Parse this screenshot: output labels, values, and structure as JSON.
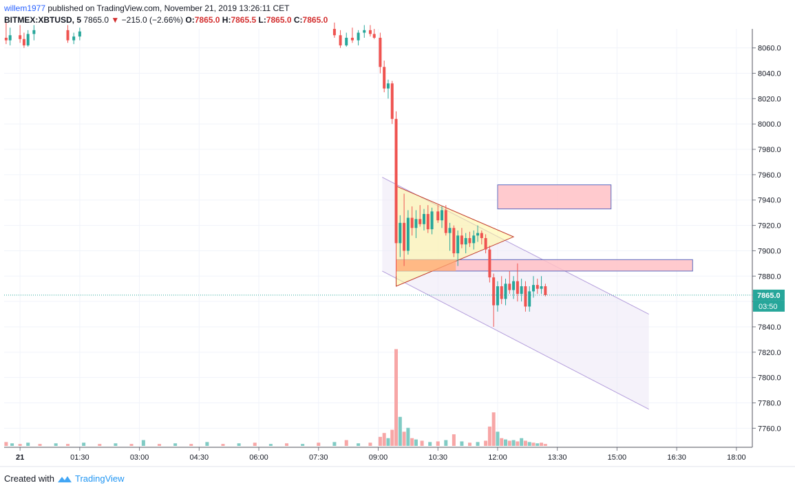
{
  "header": {
    "user": "willem1977",
    "published": "published on TradingView.com, November 21, 2019 13:26:11 CET",
    "symbol": "BITMEX:XBTUSD, 5",
    "price": "7865.0",
    "change": "−215.0 (−2.66%)",
    "open_label": "O:",
    "open": "7865.0",
    "high_label": "H:",
    "high": "7865.5",
    "low_label": "L:",
    "low": "7865.0",
    "close_label": "C:",
    "close": "7865.0"
  },
  "footer": {
    "created_with": "Created with",
    "brand": "TradingView"
  },
  "price_badge": {
    "price": "7865.0",
    "countdown": "03:50"
  },
  "colors": {
    "up": "#26a69a",
    "down": "#ef5350",
    "vol_up": "#80cbc4",
    "vol_down": "#f7a6a6",
    "grid": "#f0f3fa"
  },
  "chart_data": {
    "type": "candlestick",
    "ylim": [
      7745,
      8075
    ],
    "xlim": [
      -0.4,
      18.4
    ],
    "y_ticks": [
      "8060.0",
      "8040.0",
      "8020.0",
      "8000.0",
      "7980.0",
      "7960.0",
      "7940.0",
      "7920.0",
      "7900.0",
      "7880.0",
      "7860.0",
      "7840.0",
      "7820.0",
      "7800.0",
      "7780.0",
      "7760.0"
    ],
    "x_ticks": [
      {
        "label": "21",
        "t": 0.0
      },
      {
        "label": "01:30",
        "t": 1.5
      },
      {
        "label": "03:00",
        "t": 3.0
      },
      {
        "label": "04:30",
        "t": 4.5
      },
      {
        "label": "06:00",
        "t": 6.0
      },
      {
        "label": "07:30",
        "t": 7.5
      },
      {
        "label": "09:00",
        "t": 9.0
      },
      {
        "label": "10:30",
        "t": 10.5
      },
      {
        "label": "12:00",
        "t": 12.0
      },
      {
        "label": "13:30",
        "t": 13.5
      },
      {
        "label": "15:00",
        "t": 15.0
      },
      {
        "label": "16:30",
        "t": 16.5
      },
      {
        "label": "18:00",
        "t": 18.0
      }
    ],
    "current_price": 7865.0,
    "candles": [
      {
        "t": -0.35,
        "o": 8068,
        "h": 8080,
        "l": 8063,
        "c": 8066
      },
      {
        "t": -0.25,
        "o": 8066,
        "h": 8076,
        "l": 8062,
        "c": 8070
      },
      {
        "t": 0.0,
        "o": 8070,
        "h": 8078,
        "l": 8064,
        "c": 8067
      },
      {
        "t": 0.1,
        "o": 8067,
        "h": 8072,
        "l": 8060,
        "c": 8062
      },
      {
        "t": 0.2,
        "o": 8062,
        "h": 8074,
        "l": 8061,
        "c": 8071
      },
      {
        "t": 0.35,
        "o": 8071,
        "h": 8078,
        "l": 8066,
        "c": 8074
      },
      {
        "t": 1.2,
        "o": 8074,
        "h": 8078,
        "l": 8064,
        "c": 8066
      },
      {
        "t": 1.35,
        "o": 8066,
        "h": 8072,
        "l": 8063,
        "c": 8069
      },
      {
        "t": 1.5,
        "o": 8069,
        "h": 8076,
        "l": 8066,
        "c": 8073
      },
      {
        "t": 7.9,
        "o": 8075,
        "h": 8080,
        "l": 8068,
        "c": 8070
      },
      {
        "t": 8.05,
        "o": 8070,
        "h": 8074,
        "l": 8060,
        "c": 8062
      },
      {
        "t": 8.2,
        "o": 8062,
        "h": 8072,
        "l": 8061,
        "c": 8068
      },
      {
        "t": 8.35,
        "o": 8068,
        "h": 8076,
        "l": 8064,
        "c": 8066
      },
      {
        "t": 8.5,
        "o": 8066,
        "h": 8074,
        "l": 8062,
        "c": 8072
      },
      {
        "t": 8.65,
        "o": 8072,
        "h": 8078,
        "l": 8068,
        "c": 8074
      },
      {
        "t": 8.8,
        "o": 8074,
        "h": 8078,
        "l": 8069,
        "c": 8071
      },
      {
        "t": 8.9,
        "o": 8071,
        "h": 8075,
        "l": 8067,
        "c": 8068
      },
      {
        "t": 9.05,
        "o": 8068,
        "h": 8072,
        "l": 8040,
        "c": 8045
      },
      {
        "t": 9.15,
        "o": 8045,
        "h": 8050,
        "l": 8025,
        "c": 8028
      },
      {
        "t": 9.25,
        "o": 8028,
        "h": 8035,
        "l": 8020,
        "c": 8032
      },
      {
        "t": 9.35,
        "o": 8032,
        "h": 8034,
        "l": 8000,
        "c": 8004
      },
      {
        "t": 9.45,
        "o": 8004,
        "h": 8010,
        "l": 7880,
        "c": 7906
      },
      {
        "t": 9.55,
        "o": 7906,
        "h": 7928,
        "l": 7895,
        "c": 7922
      },
      {
        "t": 9.65,
        "o": 7922,
        "h": 7945,
        "l": 7888,
        "c": 7900
      },
      {
        "t": 9.75,
        "o": 7900,
        "h": 7932,
        "l": 7897,
        "c": 7926
      },
      {
        "t": 9.85,
        "o": 7926,
        "h": 7935,
        "l": 7912,
        "c": 7918
      },
      {
        "t": 9.95,
        "o": 7918,
        "h": 7932,
        "l": 7910,
        "c": 7925
      },
      {
        "t": 10.05,
        "o": 7925,
        "h": 7936,
        "l": 7919,
        "c": 7921
      },
      {
        "t": 10.15,
        "o": 7921,
        "h": 7933,
        "l": 7916,
        "c": 7929
      },
      {
        "t": 10.25,
        "o": 7929,
        "h": 7936,
        "l": 7914,
        "c": 7917
      },
      {
        "t": 10.35,
        "o": 7917,
        "h": 7934,
        "l": 7913,
        "c": 7931
      },
      {
        "t": 10.5,
        "o": 7931,
        "h": 7936,
        "l": 7922,
        "c": 7924
      },
      {
        "t": 10.6,
        "o": 7924,
        "h": 7935,
        "l": 7918,
        "c": 7932
      },
      {
        "t": 10.7,
        "o": 7932,
        "h": 7936,
        "l": 7912,
        "c": 7914
      },
      {
        "t": 10.8,
        "o": 7914,
        "h": 7922,
        "l": 7900,
        "c": 7918
      },
      {
        "t": 10.9,
        "o": 7918,
        "h": 7920,
        "l": 7895,
        "c": 7898
      },
      {
        "t": 11.0,
        "o": 7898,
        "h": 7916,
        "l": 7888,
        "c": 7912
      },
      {
        "t": 11.1,
        "o": 7912,
        "h": 7918,
        "l": 7902,
        "c": 7905
      },
      {
        "t": 11.2,
        "o": 7905,
        "h": 7914,
        "l": 7898,
        "c": 7910
      },
      {
        "t": 11.3,
        "o": 7910,
        "h": 7915,
        "l": 7903,
        "c": 7906
      },
      {
        "t": 11.4,
        "o": 7906,
        "h": 7916,
        "l": 7901,
        "c": 7912
      },
      {
        "t": 11.5,
        "o": 7912,
        "h": 7920,
        "l": 7907,
        "c": 7914
      },
      {
        "t": 11.6,
        "o": 7914,
        "h": 7916,
        "l": 7905,
        "c": 7910
      },
      {
        "t": 11.7,
        "o": 7910,
        "h": 7913,
        "l": 7898,
        "c": 7901
      },
      {
        "t": 11.8,
        "o": 7901,
        "h": 7904,
        "l": 7875,
        "c": 7879
      },
      {
        "t": 11.9,
        "o": 7879,
        "h": 7882,
        "l": 7840,
        "c": 7857
      },
      {
        "t": 12.0,
        "o": 7857,
        "h": 7876,
        "l": 7852,
        "c": 7872
      },
      {
        "t": 12.1,
        "o": 7872,
        "h": 7880,
        "l": 7858,
        "c": 7862
      },
      {
        "t": 12.2,
        "o": 7862,
        "h": 7878,
        "l": 7857,
        "c": 7874
      },
      {
        "t": 12.3,
        "o": 7874,
        "h": 7884,
        "l": 7866,
        "c": 7869
      },
      {
        "t": 12.4,
        "o": 7869,
        "h": 7880,
        "l": 7862,
        "c": 7876
      },
      {
        "t": 12.5,
        "o": 7876,
        "h": 7890,
        "l": 7860,
        "c": 7866
      },
      {
        "t": 12.6,
        "o": 7866,
        "h": 7878,
        "l": 7860,
        "c": 7872
      },
      {
        "t": 12.7,
        "o": 7872,
        "h": 7876,
        "l": 7852,
        "c": 7856
      },
      {
        "t": 12.8,
        "o": 7856,
        "h": 7872,
        "l": 7852,
        "c": 7868
      },
      {
        "t": 12.9,
        "o": 7868,
        "h": 7880,
        "l": 7863,
        "c": 7873
      },
      {
        "t": 13.0,
        "o": 7873,
        "h": 7878,
        "l": 7866,
        "c": 7870
      },
      {
        "t": 13.1,
        "o": 7870,
        "h": 7880,
        "l": 7866,
        "c": 7872
      },
      {
        "t": 13.2,
        "o": 7872,
        "h": 7874,
        "l": 7864,
        "c": 7865
      }
    ],
    "volume": [
      {
        "t": -0.35,
        "v": 6,
        "up": false
      },
      {
        "t": -0.2,
        "v": 4,
        "up": true
      },
      {
        "t": 0.0,
        "v": 3,
        "up": false
      },
      {
        "t": 0.2,
        "v": 5,
        "up": true
      },
      {
        "t": 0.5,
        "v": 3,
        "up": false
      },
      {
        "t": 0.9,
        "v": 4,
        "up": true
      },
      {
        "t": 1.2,
        "v": 3,
        "up": false
      },
      {
        "t": 1.6,
        "v": 5,
        "up": true
      },
      {
        "t": 2.0,
        "v": 3,
        "up": false
      },
      {
        "t": 2.4,
        "v": 4,
        "up": true
      },
      {
        "t": 2.8,
        "v": 3,
        "up": false
      },
      {
        "t": 3.1,
        "v": 9,
        "up": true
      },
      {
        "t": 3.5,
        "v": 3,
        "up": false
      },
      {
        "t": 3.9,
        "v": 4,
        "up": true
      },
      {
        "t": 4.3,
        "v": 3,
        "up": false
      },
      {
        "t": 4.7,
        "v": 6,
        "up": true
      },
      {
        "t": 5.1,
        "v": 3,
        "up": false
      },
      {
        "t": 5.5,
        "v": 4,
        "up": true
      },
      {
        "t": 5.9,
        "v": 5,
        "up": false
      },
      {
        "t": 6.3,
        "v": 3,
        "up": true
      },
      {
        "t": 6.7,
        "v": 4,
        "up": false
      },
      {
        "t": 7.1,
        "v": 3,
        "up": true
      },
      {
        "t": 7.5,
        "v": 5,
        "up": false
      },
      {
        "t": 7.9,
        "v": 6,
        "up": true
      },
      {
        "t": 8.2,
        "v": 9,
        "up": false
      },
      {
        "t": 8.5,
        "v": 4,
        "up": true
      },
      {
        "t": 8.8,
        "v": 5,
        "up": false
      },
      {
        "t": 9.05,
        "v": 14,
        "up": false
      },
      {
        "t": 9.15,
        "v": 20,
        "up": false
      },
      {
        "t": 9.25,
        "v": 12,
        "up": true
      },
      {
        "t": 9.35,
        "v": 25,
        "up": false
      },
      {
        "t": 9.45,
        "v": 150,
        "up": false
      },
      {
        "t": 9.55,
        "v": 45,
        "up": true
      },
      {
        "t": 9.65,
        "v": 22,
        "up": false
      },
      {
        "t": 9.75,
        "v": 28,
        "up": true
      },
      {
        "t": 9.85,
        "v": 12,
        "up": false
      },
      {
        "t": 9.95,
        "v": 10,
        "up": true
      },
      {
        "t": 10.1,
        "v": 8,
        "up": false
      },
      {
        "t": 10.3,
        "v": 6,
        "up": true
      },
      {
        "t": 10.5,
        "v": 7,
        "up": false
      },
      {
        "t": 10.7,
        "v": 9,
        "up": true
      },
      {
        "t": 10.9,
        "v": 18,
        "up": false
      },
      {
        "t": 11.1,
        "v": 7,
        "up": true
      },
      {
        "t": 11.3,
        "v": 5,
        "up": false
      },
      {
        "t": 11.5,
        "v": 6,
        "up": true
      },
      {
        "t": 11.7,
        "v": 8,
        "up": false
      },
      {
        "t": 11.8,
        "v": 30,
        "up": false
      },
      {
        "t": 11.9,
        "v": 52,
        "up": false
      },
      {
        "t": 12.0,
        "v": 22,
        "up": true
      },
      {
        "t": 12.1,
        "v": 12,
        "up": false
      },
      {
        "t": 12.2,
        "v": 10,
        "up": true
      },
      {
        "t": 12.3,
        "v": 8,
        "up": false
      },
      {
        "t": 12.4,
        "v": 9,
        "up": true
      },
      {
        "t": 12.5,
        "v": 7,
        "up": false
      },
      {
        "t": 12.6,
        "v": 12,
        "up": true
      },
      {
        "t": 12.7,
        "v": 8,
        "up": false
      },
      {
        "t": 12.8,
        "v": 6,
        "up": true
      },
      {
        "t": 12.9,
        "v": 5,
        "up": false
      },
      {
        "t": 13.0,
        "v": 4,
        "up": true
      },
      {
        "t": 13.1,
        "v": 5,
        "up": false
      },
      {
        "t": 13.2,
        "v": 3,
        "up": false
      }
    ],
    "vol_max": 160,
    "drawings": {
      "triangle": [
        {
          "t": 9.45,
          "p": 7951
        },
        {
          "t": 9.45,
          "p": 7872
        },
        {
          "t": 12.4,
          "p": 7911
        }
      ],
      "zones": [
        {
          "t0": 12.0,
          "t1": 14.85,
          "p0": 7952,
          "p1": 7933
        },
        {
          "t0": 9.45,
          "t1": 16.9,
          "p0": 7893,
          "p1": 7884
        }
      ],
      "orange_zone": {
        "t0": 9.45,
        "t1": 10.95,
        "p0": 7893,
        "p1": 7884
      },
      "channel": {
        "upper": [
          {
            "t": 9.1,
            "p": 7958
          },
          {
            "t": 15.8,
            "p": 7850
          }
        ],
        "lower": [
          {
            "t": 9.1,
            "p": 7884
          },
          {
            "t": 15.8,
            "p": 7775
          }
        ]
      }
    }
  }
}
